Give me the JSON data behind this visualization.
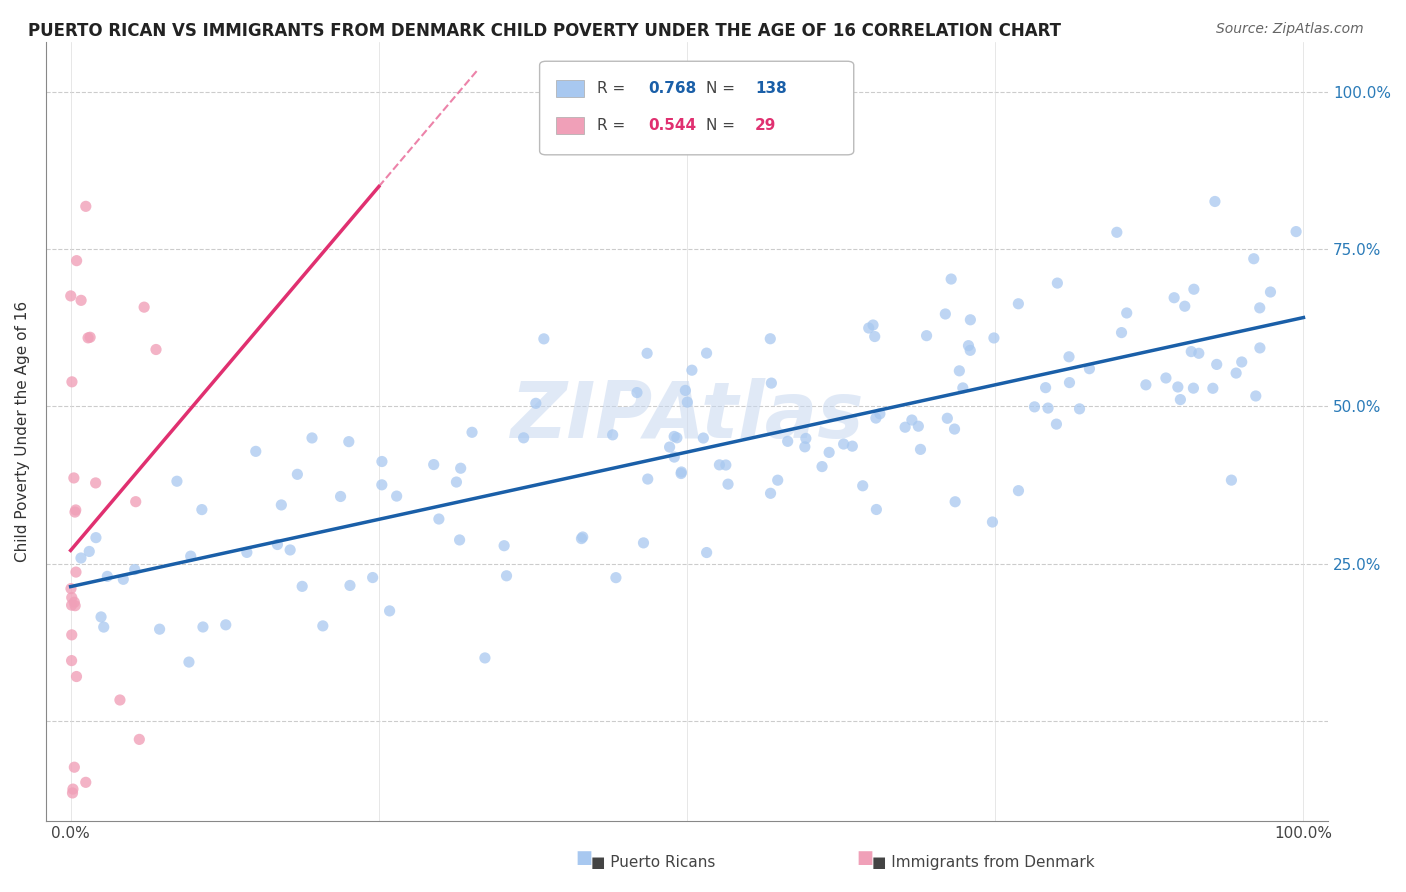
{
  "title": "PUERTO RICAN VS IMMIGRANTS FROM DENMARK CHILD POVERTY UNDER THE AGE OF 16 CORRELATION CHART",
  "source": "Source: ZipAtlas.com",
  "ylabel": "Child Poverty Under the Age of 16",
  "blue_color": "#A8C8F0",
  "pink_color": "#F0A0B8",
  "blue_line_color": "#1A5FA8",
  "pink_line_color": "#E03070",
  "legend_blue_r_val": "0.768",
  "legend_blue_n_val": "138",
  "legend_pink_r_val": "0.544",
  "legend_pink_n_val": "29",
  "watermark": "ZIPAtlas",
  "watermark_color": "#C8D8F0",
  "title_fontsize": 12,
  "source_fontsize": 10,
  "R_blue": 0.768,
  "N_blue": 138,
  "R_pink": 0.544,
  "N_pink": 29,
  "xlim": [
    -0.02,
    1.02
  ],
  "ylim": [
    -0.15,
    1.08
  ],
  "x_axis_min": 0.0,
  "x_axis_max": 1.0,
  "y_axis_min": 0.0,
  "y_axis_max": 1.0
}
